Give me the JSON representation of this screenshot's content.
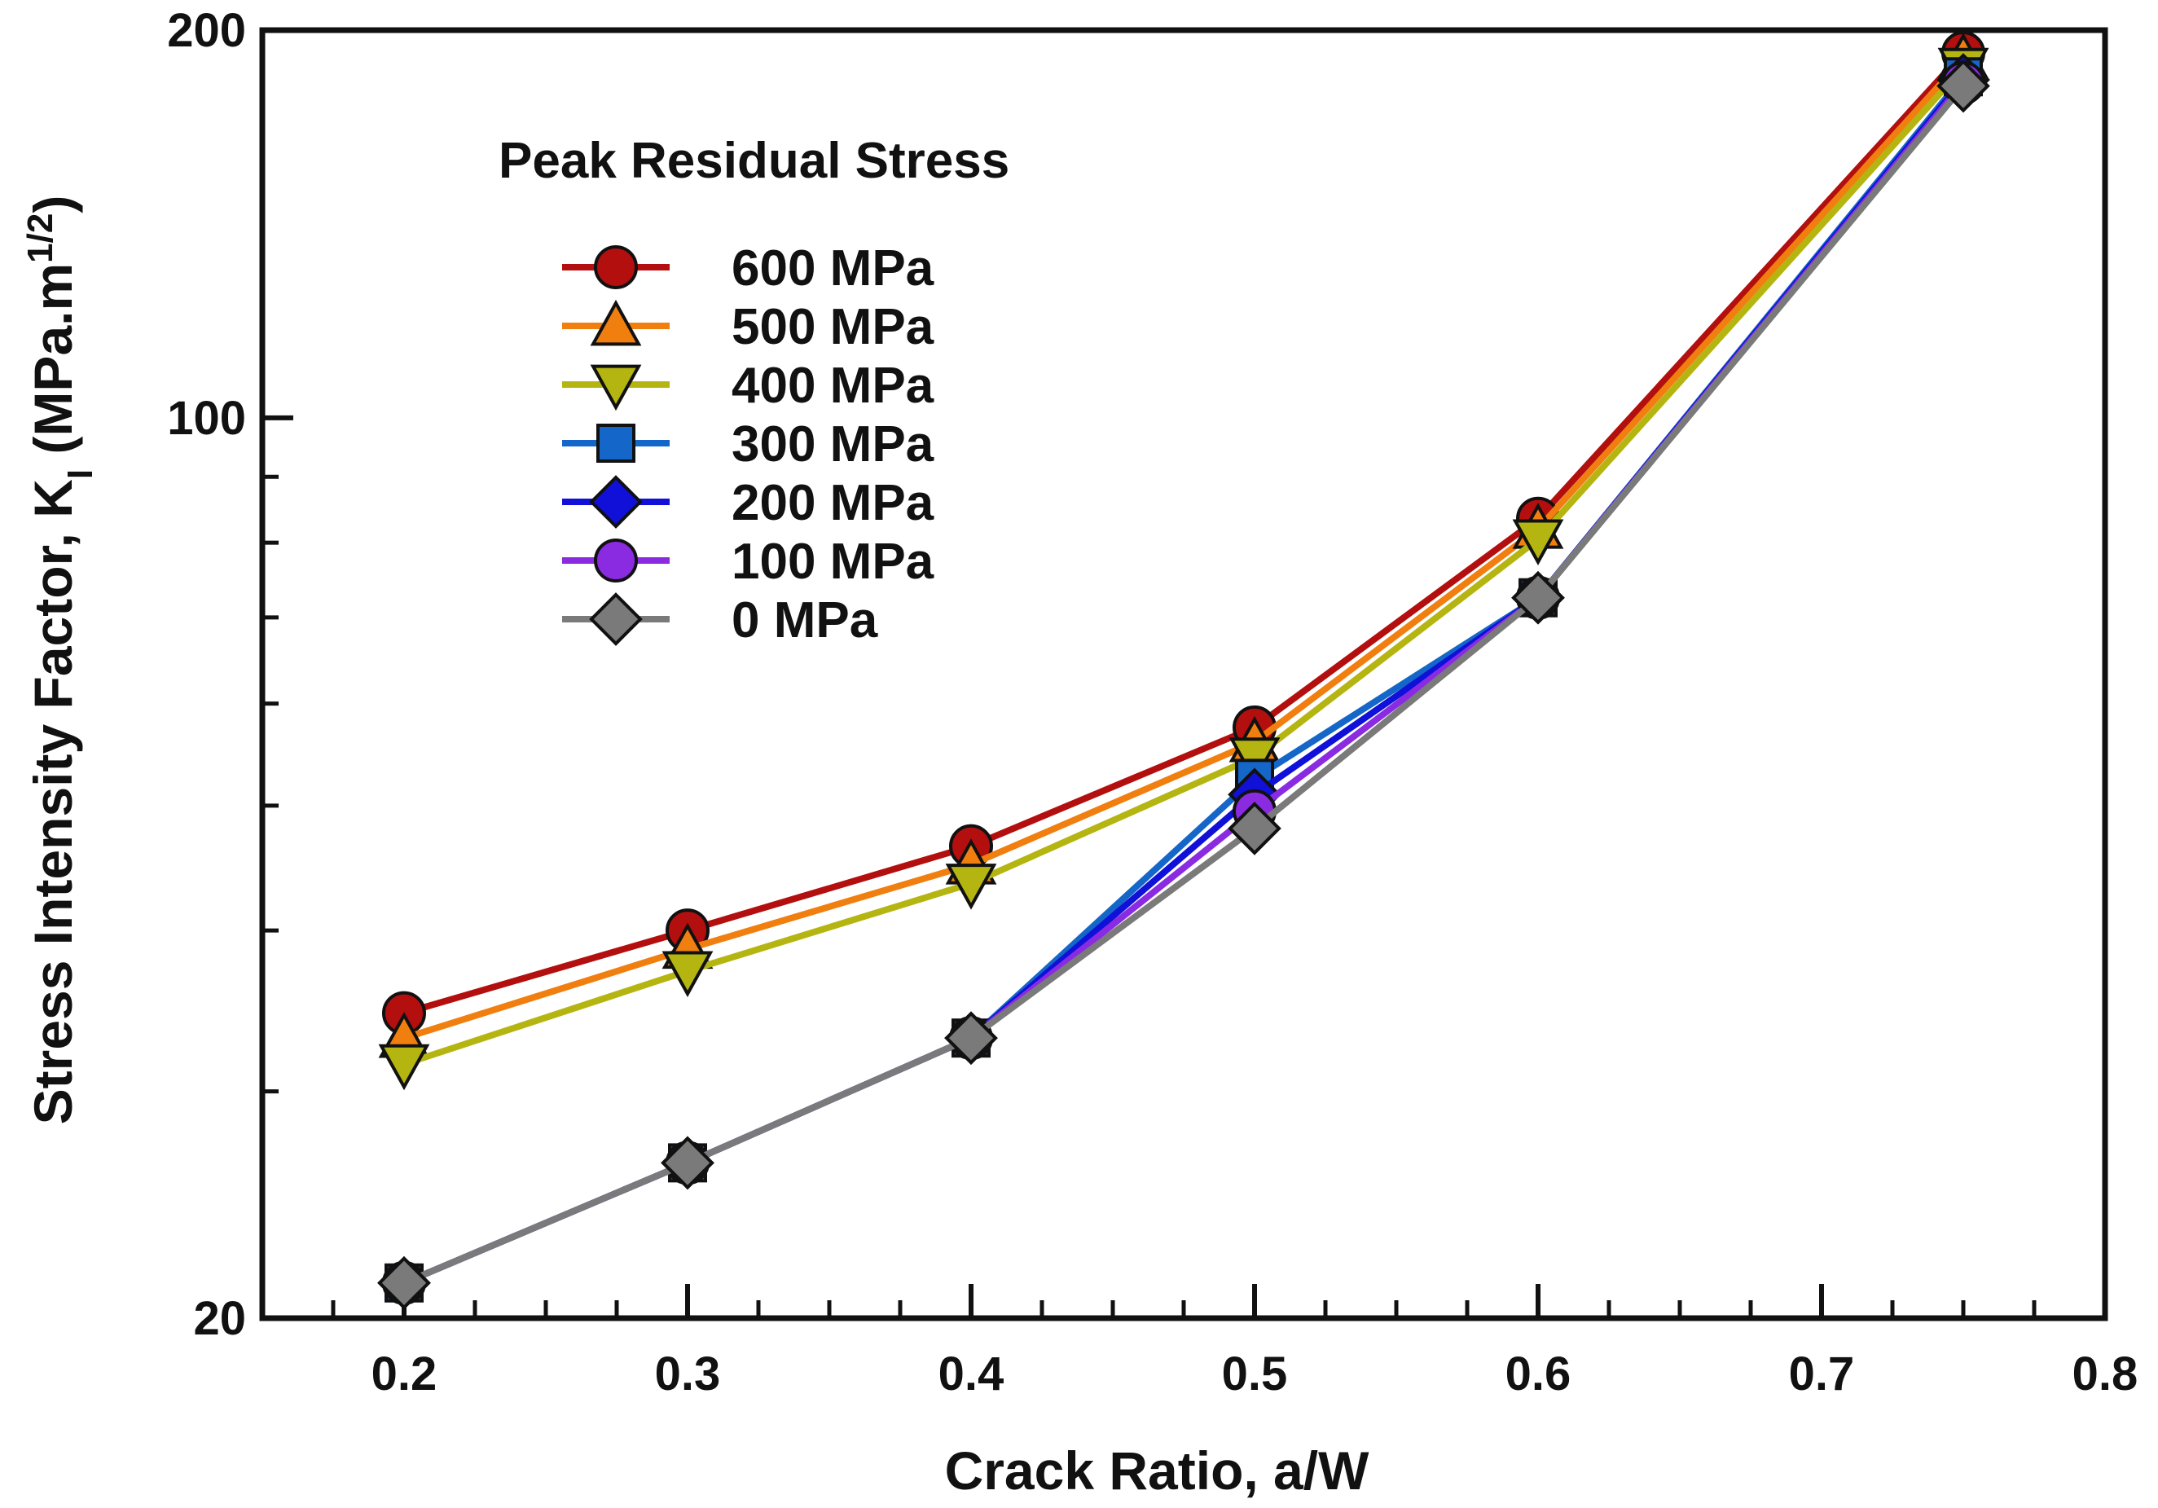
{
  "chart_data": {
    "type": "line",
    "title": "",
    "xlabel": "Crack Ratio, a/W",
    "ylabel": {
      "main": "Stress Intensity Factor, K",
      "subscript": "I",
      "unit_open": " (MPa.m",
      "superscript": "1/2",
      "unit_close": ")"
    },
    "x_scale": "linear",
    "y_scale": "log",
    "xlim": [
      0.15,
      0.8
    ],
    "ylim": [
      20,
      200
    ],
    "x_ticks": [
      0.2,
      0.3,
      0.4,
      0.5,
      0.6,
      0.7,
      0.8
    ],
    "x_tick_labels": [
      "0.2",
      "0.3",
      "0.4",
      "0.5",
      "0.6",
      "0.7",
      "0.8"
    ],
    "y_major_ticks": [
      20,
      100,
      200
    ],
    "y_tick_labels": [
      "20",
      "100",
      "200"
    ],
    "y_minor_ticks": [
      30,
      40,
      50,
      60,
      70,
      80,
      90
    ],
    "legend_title": "Peak Residual Stress",
    "legend_position": "top-left",
    "x": [
      0.2,
      0.3,
      0.4,
      0.5,
      0.6,
      0.75
    ],
    "series": [
      {
        "name": "600 MPa",
        "marker": "circle",
        "color": "#b30f0f",
        "values": [
          34.5,
          40.0,
          46.5,
          57.5,
          83.5,
          192
        ]
      },
      {
        "name": "500 MPa",
        "marker": "triangle-up",
        "color": "#f07f10",
        "values": [
          33.0,
          38.7,
          45.0,
          56.0,
          82.0,
          190
        ]
      },
      {
        "name": "400 MPa",
        "marker": "triangle-down",
        "color": "#b5b512",
        "values": [
          31.5,
          37.2,
          43.5,
          54.5,
          80.5,
          187
        ]
      },
      {
        "name": "300 MPa",
        "marker": "square",
        "color": "#1466c8",
        "values": [
          21.3,
          26.4,
          33.0,
          52.5,
          72.5,
          184
        ]
      },
      {
        "name": "200 MPa",
        "marker": "diamond",
        "color": "#1010d8",
        "values": [
          21.3,
          26.4,
          33.0,
          51.0,
          72.5,
          183
        ]
      },
      {
        "name": "100 MPa",
        "marker": "circle",
        "color": "#8a2be2",
        "values": [
          21.3,
          26.4,
          33.0,
          49.5,
          72.5,
          182
        ]
      },
      {
        "name": "0 MPa",
        "marker": "diamond",
        "color": "#7a7a7a",
        "values": [
          21.3,
          26.4,
          33.0,
          48.0,
          72.5,
          181
        ]
      }
    ],
    "grid": false
  }
}
